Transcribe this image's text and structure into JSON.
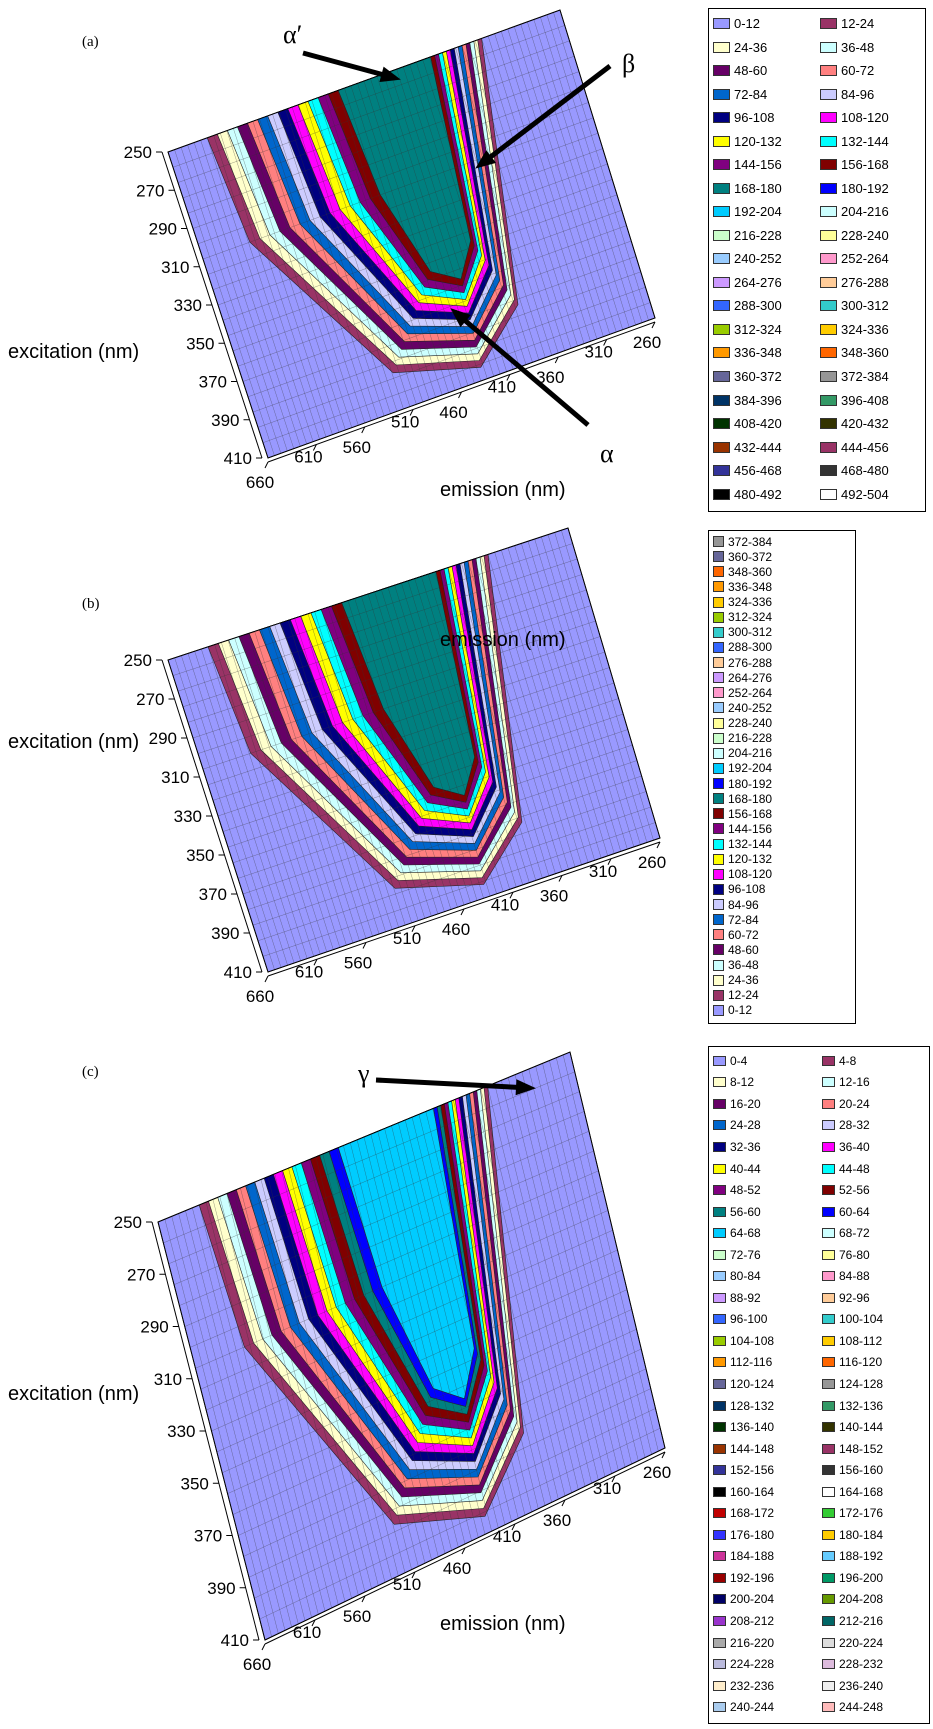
{
  "chart_data": [
    {
      "type": "surface-contour",
      "panel_label": "(a)",
      "xlabel": "emission (nm)",
      "ylabel": "excitation (nm)",
      "x_ticks": [
        "660",
        "610",
        "560",
        "510",
        "460",
        "410",
        "360",
        "310",
        "260"
      ],
      "y_ticks": [
        "250",
        "270",
        "290",
        "310",
        "330",
        "350",
        "370",
        "390",
        "410"
      ],
      "annotations": [
        "α′",
        "β",
        "α"
      ],
      "legend_entries": [
        "0-12",
        "12-24",
        "24-36",
        "36-48",
        "48-60",
        "60-72",
        "72-84",
        "84-96",
        "96-108",
        "108-120",
        "120-132",
        "132-144",
        "144-156",
        "156-168",
        "168-180",
        "180-192",
        "192-204",
        "204-216",
        "216-228",
        "228-240",
        "240-252",
        "252-264",
        "264-276",
        "276-288",
        "288-300",
        "300-312",
        "312-324",
        "324-336",
        "336-348",
        "348-360",
        "360-372",
        "372-384",
        "384-396",
        "396-408",
        "408-420",
        "420-432",
        "432-444",
        "444-456",
        "456-468",
        "468-480",
        "480-492",
        "492-504"
      ],
      "legend_colors": [
        "#9999ff",
        "#993366",
        "#ffffcc",
        "#ccffff",
        "#660066",
        "#ff8080",
        "#0066cc",
        "#ccccff",
        "#000080",
        "#ff00ff",
        "#ffff00",
        "#00ffff",
        "#800080",
        "#800000",
        "#008080",
        "#0000ff",
        "#00ccff",
        "#ccffff",
        "#ccffcc",
        "#ffff99",
        "#99ccff",
        "#ff99cc",
        "#cc99ff",
        "#ffcc99",
        "#3366ff",
        "#33cccc",
        "#99cc00",
        "#ffcc00",
        "#ff9900",
        "#ff6600",
        "#666699",
        "#969696",
        "#003366",
        "#339966",
        "#003300",
        "#333300",
        "#993300",
        "#993366",
        "#333399",
        "#333333",
        "#000000",
        "#ffffff"
      ]
    },
    {
      "type": "surface-contour",
      "panel_label": "(b)",
      "xlabel": "emission (nm)",
      "ylabel": "excitation (nm)",
      "x_ticks": [
        "660",
        "610",
        "560",
        "510",
        "460",
        "410",
        "360",
        "310",
        "260"
      ],
      "y_ticks": [
        "250",
        "270",
        "290",
        "310",
        "330",
        "350",
        "370",
        "390",
        "410"
      ],
      "legend_entries": [
        "372-384",
        "360-372",
        "348-360",
        "336-348",
        "324-336",
        "312-324",
        "300-312",
        "288-300",
        "276-288",
        "264-276",
        "252-264",
        "240-252",
        "228-240",
        "216-228",
        "204-216",
        "192-204",
        "180-192",
        "168-180",
        "156-168",
        "144-156",
        "132-144",
        "120-132",
        "108-120",
        "96-108",
        "84-96",
        "72-84",
        "60-72",
        "48-60",
        "36-48",
        "24-36",
        "12-24",
        "0-12"
      ],
      "legend_colors": [
        "#969696",
        "#666699",
        "#ff6600",
        "#ff9900",
        "#ffcc00",
        "#99cc00",
        "#33cccc",
        "#3366ff",
        "#ffcc99",
        "#cc99ff",
        "#ff99cc",
        "#99ccff",
        "#ffff99",
        "#ccffcc",
        "#ccffff",
        "#00ccff",
        "#0000ff",
        "#008080",
        "#800000",
        "#800080",
        "#00ffff",
        "#ffff00",
        "#ff00ff",
        "#000080",
        "#ccccff",
        "#0066cc",
        "#ff8080",
        "#660066",
        "#ccffff",
        "#ffffcc",
        "#993366",
        "#9999ff"
      ]
    },
    {
      "type": "surface-contour",
      "panel_label": "(c)",
      "xlabel": "emission (nm)",
      "ylabel": "excitation (nm)",
      "x_ticks": [
        "660",
        "610",
        "560",
        "510",
        "460",
        "410",
        "360",
        "310",
        "260"
      ],
      "y_ticks": [
        "250",
        "270",
        "290",
        "310",
        "330",
        "350",
        "370",
        "390",
        "410"
      ],
      "annotations": [
        "γ"
      ],
      "legend_entries": [
        "0-4",
        "4-8",
        "8-12",
        "12-16",
        "16-20",
        "20-24",
        "24-28",
        "28-32",
        "32-36",
        "36-40",
        "40-44",
        "44-48",
        "48-52",
        "52-56",
        "56-60",
        "60-64",
        "64-68",
        "68-72",
        "72-76",
        "76-80",
        "80-84",
        "84-88",
        "88-92",
        "92-96",
        "96-100",
        "100-104",
        "104-108",
        "108-112",
        "112-116",
        "116-120",
        "120-124",
        "124-128",
        "128-132",
        "132-136",
        "136-140",
        "140-144",
        "144-148",
        "148-152",
        "152-156",
        "156-160",
        "160-164",
        "164-168",
        "168-172",
        "172-176",
        "176-180",
        "180-184",
        "184-188",
        "188-192",
        "192-196",
        "196-200",
        "200-204",
        "204-208",
        "208-212",
        "212-216",
        "216-220",
        "220-224",
        "224-228",
        "228-232",
        "232-236",
        "236-240",
        "240-244",
        "244-248"
      ],
      "legend_colors": [
        "#9999ff",
        "#993366",
        "#ffffcc",
        "#ccffff",
        "#660066",
        "#ff8080",
        "#0066cc",
        "#ccccff",
        "#000080",
        "#ff00ff",
        "#ffff00",
        "#00ffff",
        "#800080",
        "#800000",
        "#008080",
        "#0000ff",
        "#00ccff",
        "#ccffff",
        "#ccffcc",
        "#ffff99",
        "#99ccff",
        "#ff99cc",
        "#cc99ff",
        "#ffcc99",
        "#3366ff",
        "#33cccc",
        "#99cc00",
        "#ffcc00",
        "#ff9900",
        "#ff6600",
        "#666699",
        "#969696",
        "#003366",
        "#339966",
        "#003300",
        "#333300",
        "#993300",
        "#993366",
        "#333399",
        "#333333",
        "#000000",
        "#ffffff",
        "#c00000",
        "#33cc33",
        "#3333ff",
        "#ffcc00",
        "#cc3399",
        "#66ccff",
        "#990000",
        "#009966",
        "#000066",
        "#669900",
        "#9933cc",
        "#006666",
        "#aaaaaa",
        "#dddddd",
        "#bbbbdd",
        "#ddbbdd",
        "#ffeecc",
        "#eeeeee",
        "#aaccee",
        "#ffbbbb"
      ]
    }
  ]
}
